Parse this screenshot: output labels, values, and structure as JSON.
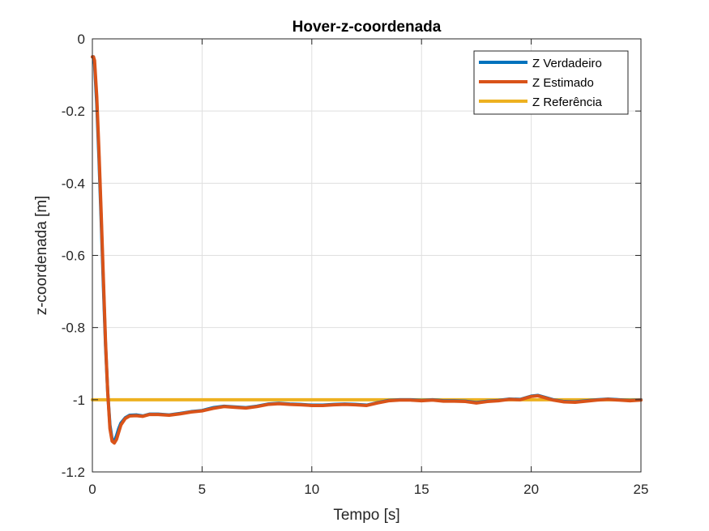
{
  "chart_data": {
    "type": "line",
    "title": "Hover-z-coordenada",
    "xlabel": "Tempo [s]",
    "ylabel": "z-coordenada [m]",
    "xlim": [
      0,
      25
    ],
    "ylim": [
      -1.2,
      0
    ],
    "xticks": [
      0,
      5,
      10,
      15,
      20,
      25
    ],
    "xtick_labels": [
      "0",
      "5",
      "10",
      "15",
      "20",
      "25"
    ],
    "yticks": [
      0,
      -0.2,
      -0.4,
      -0.6,
      -0.8,
      -1,
      -1.2
    ],
    "ytick_labels": [
      "0",
      "-0.2",
      "-0.4",
      "-0.6",
      "-0.8",
      "-1",
      "-1.2"
    ],
    "grid": true,
    "legend_position": "top-right",
    "series": [
      {
        "name": "Z Verdadeiro",
        "color": "#0072BD",
        "x": [
          0,
          0.05,
          0.1,
          0.2,
          0.3,
          0.4,
          0.5,
          0.6,
          0.7,
          0.8,
          0.9,
          1.0,
          1.1,
          1.2,
          1.3,
          1.5,
          1.7,
          2.0,
          2.3,
          2.6,
          3.0,
          3.5,
          4.0,
          4.5,
          5.0,
          5.5,
          6.0,
          6.5,
          7.0,
          7.5,
          8.0,
          8.5,
          9.0,
          9.5,
          10.0,
          10.5,
          11.0,
          11.5,
          12.0,
          12.5,
          13.0,
          13.5,
          14.0,
          14.5,
          15.0,
          15.5,
          16.0,
          16.5,
          17.0,
          17.5,
          18.0,
          18.5,
          19.0,
          19.5,
          20.0,
          20.3,
          20.6,
          21.0,
          21.5,
          22.0,
          22.5,
          23.0,
          23.5,
          24.0,
          24.5,
          25.0
        ],
        "values": [
          -0.05,
          -0.05,
          -0.07,
          -0.18,
          -0.33,
          -0.5,
          -0.68,
          -0.85,
          -0.98,
          -1.07,
          -1.11,
          -1.115,
          -1.1,
          -1.08,
          -1.065,
          -1.05,
          -1.043,
          -1.042,
          -1.045,
          -1.04,
          -1.04,
          -1.042,
          -1.038,
          -1.033,
          -1.03,
          -1.022,
          -1.018,
          -1.02,
          -1.022,
          -1.018,
          -1.012,
          -1.01,
          -1.012,
          -1.013,
          -1.015,
          -1.015,
          -1.013,
          -1.012,
          -1.013,
          -1.015,
          -1.008,
          -1.002,
          -1.0,
          -1.0,
          -1.002,
          -1.0,
          -1.003,
          -1.003,
          -1.004,
          -1.008,
          -1.004,
          -1.002,
          -0.998,
          -0.999,
          -0.99,
          -0.988,
          -0.993,
          -1.0,
          -1.005,
          -1.006,
          -1.003,
          -1.0,
          -0.998,
          -1.0,
          -1.002,
          -1.0
        ]
      },
      {
        "name": "Z Estimado",
        "color": "#D95319",
        "x": [
          0,
          0.05,
          0.1,
          0.2,
          0.3,
          0.4,
          0.5,
          0.6,
          0.7,
          0.8,
          0.9,
          1.0,
          1.1,
          1.2,
          1.3,
          1.5,
          1.7,
          2.0,
          2.3,
          2.6,
          3.0,
          3.5,
          4.0,
          4.5,
          5.0,
          5.5,
          6.0,
          6.5,
          7.0,
          7.5,
          8.0,
          8.5,
          9.0,
          9.5,
          10.0,
          10.5,
          11.0,
          11.5,
          12.0,
          12.5,
          13.0,
          13.5,
          14.0,
          14.5,
          15.0,
          15.5,
          16.0,
          16.5,
          17.0,
          17.5,
          18.0,
          18.5,
          19.0,
          19.5,
          20.0,
          20.3,
          20.6,
          21.0,
          21.5,
          22.0,
          22.5,
          23.0,
          23.5,
          24.0,
          24.5,
          25.0
        ],
        "values": [
          -0.05,
          -0.05,
          -0.06,
          -0.16,
          -0.31,
          -0.48,
          -0.66,
          -0.84,
          -0.98,
          -1.08,
          -1.115,
          -1.12,
          -1.11,
          -1.09,
          -1.07,
          -1.052,
          -1.045,
          -1.044,
          -1.046,
          -1.041,
          -1.041,
          -1.043,
          -1.039,
          -1.034,
          -1.031,
          -1.024,
          -1.019,
          -1.021,
          -1.023,
          -1.019,
          -1.013,
          -1.011,
          -1.013,
          -1.014,
          -1.016,
          -1.016,
          -1.014,
          -1.013,
          -1.014,
          -1.016,
          -1.009,
          -1.003,
          -1.001,
          -1.001,
          -1.003,
          -1.001,
          -1.004,
          -1.004,
          -1.005,
          -1.009,
          -1.005,
          -1.003,
          -0.999,
          -1.0,
          -0.991,
          -0.989,
          -0.994,
          -1.001,
          -1.006,
          -1.007,
          -1.004,
          -1.001,
          -0.999,
          -1.001,
          -1.003,
          -1.001
        ]
      },
      {
        "name": "Z Referência",
        "color": "#EDB120",
        "x": [
          0,
          25
        ],
        "values": [
          -1,
          -1
        ]
      }
    ]
  }
}
